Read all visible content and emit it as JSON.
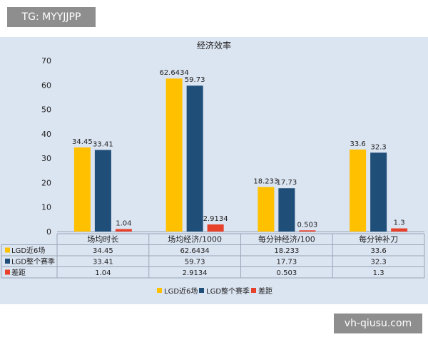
{
  "watermarks": {
    "top_left": "TG: MYYJJPP",
    "bottom_right": "vh-qiusu.com"
  },
  "chart_data": {
    "type": "bar",
    "title": "经济效率",
    "categories": [
      "场均时长",
      "场均经济/1000",
      "每分钟经济/100",
      "每分钟补刀"
    ],
    "series": [
      {
        "name": "LGD近6场",
        "color": "#ffc000",
        "values": [
          34.45,
          62.6434,
          18.233,
          33.6
        ],
        "labels": [
          "34.45",
          "62.6434",
          "18.233",
          "33.6"
        ]
      },
      {
        "name": "LGD整个赛季",
        "color": "#1f4e79",
        "values": [
          33.41,
          59.73,
          17.73,
          32.3
        ],
        "labels": [
          "33.41",
          "59.73",
          "17.73",
          "32.3"
        ]
      },
      {
        "name": "差距",
        "color": "#e8412a",
        "values": [
          1.04,
          2.9134,
          0.503,
          1.3
        ],
        "labels": [
          "1.04",
          "2.9134",
          "0.503",
          "1.3"
        ]
      }
    ],
    "ylim": [
      0,
      70
    ],
    "yticks": [
      "0",
      "10",
      "20",
      "30",
      "40",
      "50",
      "60",
      "70"
    ],
    "grid": false,
    "legend": "bottom",
    "data_table": true
  }
}
